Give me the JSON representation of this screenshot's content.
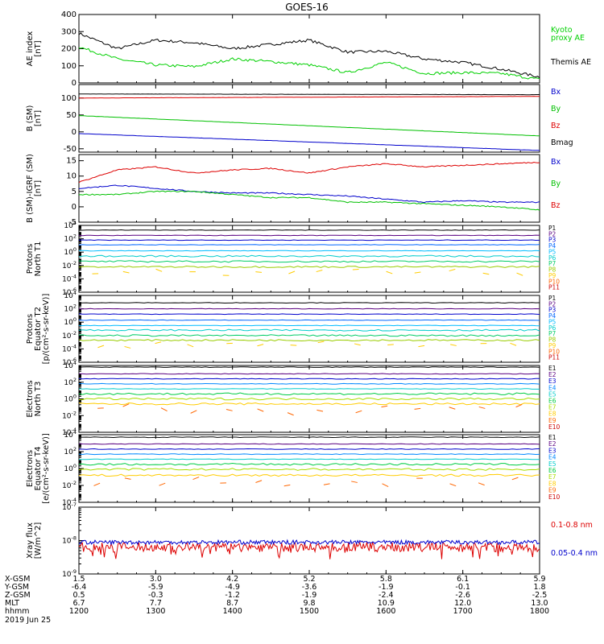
{
  "title": "GOES-16",
  "footer": {
    "row_labels": [
      "X-GSM",
      "Y-GSM",
      "Z-GSM",
      "MLT",
      "hhmm"
    ],
    "date": "2019 Jun 25",
    "columns": [
      [
        "1.5",
        "-6.4",
        "0.5",
        "6.7",
        "1200"
      ],
      [
        "3.0",
        "-5.9",
        "-0.3",
        "7.7",
        "1300"
      ],
      [
        "4.2",
        "-4.9",
        "-1.2",
        "8.7",
        "1400"
      ],
      [
        "5.2",
        "-3.6",
        "-1.9",
        "9.8",
        "1500"
      ],
      [
        "5.8",
        "-1.9",
        "-2.4",
        "10.9",
        "1600"
      ],
      [
        "6.1",
        "-0.1",
        "-2.6",
        "12.0",
        "1700"
      ],
      [
        "5.9",
        "1.8",
        "-2.5",
        "13.0",
        "1800"
      ]
    ]
  },
  "chart_data": [
    {
      "id": "ae",
      "type": "line",
      "ylabel": [
        "AE index",
        "[nT]"
      ],
      "ylim": [
        0,
        400
      ],
      "yticks": [
        0,
        100,
        200,
        300,
        400
      ],
      "ytick_labels": [
        "0",
        "100",
        "200",
        "300",
        "400"
      ],
      "x_hours": [
        12,
        12.5,
        13,
        13.5,
        14,
        14.5,
        15,
        15.5,
        16,
        16.5,
        17,
        17.5,
        18
      ],
      "legend": [
        {
          "text": "Kyoto",
          "color": "#00d000"
        },
        {
          "text": "proxy AE",
          "color": "#00d000"
        },
        {
          "text": "Themis AE",
          "color": "#000000"
        }
      ],
      "series": [
        {
          "name": "Themis AE",
          "color": "#000000",
          "values": [
            290,
            200,
            250,
            235,
            200,
            225,
            250,
            180,
            185,
            140,
            120,
            80,
            35
          ]
        },
        {
          "name": "Kyoto proxy AE",
          "color": "#00d000",
          "values": [
            210,
            140,
            105,
            95,
            140,
            125,
            105,
            60,
            120,
            55,
            60,
            55,
            20
          ]
        }
      ]
    },
    {
      "id": "bsm",
      "type": "line",
      "ylabel": [
        "B (SM)",
        "[nT]"
      ],
      "ylim": [
        -60,
        140
      ],
      "yticks": [
        -50,
        0,
        50,
        100
      ],
      "ytick_labels": [
        "-50",
        "0",
        "50",
        "100"
      ],
      "x_hours": [
        12,
        18
      ],
      "legend": [
        {
          "text": "Bx",
          "color": "#0000cc"
        },
        {
          "text": "By",
          "color": "#00c000"
        },
        {
          "text": "Bz",
          "color": "#dd0000"
        },
        {
          "text": "Bmag",
          "color": "#000000"
        }
      ],
      "series": [
        {
          "name": "Bx",
          "color": "#0000cc",
          "values": [
            -5,
            -55
          ]
        },
        {
          "name": "By",
          "color": "#00c000",
          "values": [
            48,
            -12
          ]
        },
        {
          "name": "Bz",
          "color": "#dd0000",
          "values": [
            100,
            105
          ]
        },
        {
          "name": "Bmag",
          "color": "#000000",
          "values": [
            112,
            110
          ]
        }
      ]
    },
    {
      "id": "bigrf",
      "type": "line",
      "ylabel": [
        "B (SM)-IGRF (SM)",
        "[nT]"
      ],
      "ylim": [
        -5,
        17
      ],
      "yticks": [
        -5,
        0,
        5,
        10,
        15
      ],
      "ytick_labels": [
        "-5",
        "0",
        "5",
        "10",
        "15"
      ],
      "x_hours": [
        12,
        12.5,
        13,
        13.5,
        14,
        14.5,
        15,
        15.5,
        16,
        16.5,
        17,
        17.5,
        18
      ],
      "legend": [
        {
          "text": "Bx",
          "color": "#0000cc"
        },
        {
          "text": "By",
          "color": "#00c000"
        },
        {
          "text": "Bz",
          "color": "#dd0000"
        }
      ],
      "series": [
        {
          "name": "Bx",
          "color": "#0000cc",
          "values": [
            6,
            7,
            6,
            5,
            4.5,
            4.5,
            4,
            3.5,
            2.5,
            1.5,
            2,
            1.5,
            1.5
          ]
        },
        {
          "name": "By",
          "color": "#00c000",
          "values": [
            4,
            4,
            5,
            5,
            4,
            3,
            3,
            1.5,
            1.5,
            1,
            0.5,
            0,
            -1
          ]
        },
        {
          "name": "Bz",
          "color": "#dd0000",
          "values": [
            8,
            12,
            13,
            11,
            12,
            12.5,
            11,
            13,
            14,
            13,
            13.5,
            14,
            14.5
          ]
        }
      ]
    },
    {
      "id": "protons-t1",
      "type": "line",
      "ylabel": [
        "Protons",
        "North T1"
      ],
      "yscale": "log",
      "ylim_exp": [
        -6,
        4
      ],
      "ytick_exps": [
        -6,
        -4,
        -2,
        0,
        2,
        4
      ],
      "legend_labels": [
        "P1",
        "P2",
        "P3",
        "P4",
        "P5",
        "P6",
        "P7",
        "P8",
        "P9",
        "P10",
        "P11"
      ],
      "legend_colors": [
        "#000000",
        "#5a0080",
        "#0000cc",
        "#0066ff",
        "#00bbff",
        "#00cccc",
        "#00cc66",
        "#99cc00",
        "#ffcc00",
        "#ff6600",
        "#cc0000"
      ],
      "levels_log10": [
        3.3,
        2.5,
        1.8,
        1.1,
        0.2,
        -0.6,
        -1.4,
        -2.2,
        -3.0,
        -4.0,
        -5.0
      ],
      "visible_lines": 8
    },
    {
      "id": "protons-t2",
      "type": "line",
      "ylabel": [
        "Protons",
        "Equator T2",
        "[p/(cm²-s-sr-keV)]"
      ],
      "yscale": "log",
      "ylim_exp": [
        -6,
        4
      ],
      "ytick_exps": [
        -6,
        -4,
        -2,
        0,
        2,
        4
      ],
      "legend_labels": [
        "P1",
        "P2",
        "P3",
        "P4",
        "P5",
        "P6",
        "P7",
        "P8",
        "P9",
        "P10",
        "P11"
      ],
      "legend_colors": [
        "#000000",
        "#5a0080",
        "#0000cc",
        "#0066ff",
        "#00bbff",
        "#00cccc",
        "#00cc66",
        "#99cc00",
        "#ffcc00",
        "#ff6600",
        "#cc0000"
      ],
      "levels_log10": [
        2.9,
        2.0,
        1.2,
        0.3,
        -0.5,
        -1.2,
        -2.0,
        -2.7,
        -3.5,
        -4.2,
        -5.0
      ],
      "visible_lines": 8
    },
    {
      "id": "electrons-t3",
      "type": "line",
      "ylabel": [
        "Electrons",
        "North T3"
      ],
      "yscale": "log",
      "ylim_exp": [
        -4,
        4
      ],
      "ytick_exps": [
        -4,
        -2,
        0,
        2,
        4
      ],
      "legend_labels": [
        "E1",
        "E2",
        "E3",
        "E4",
        "E5",
        "E6",
        "E7",
        "E8",
        "E9",
        "E10"
      ],
      "legend_colors": [
        "#000000",
        "#5a0080",
        "#0000cc",
        "#0088ff",
        "#00cccc",
        "#00cc44",
        "#aadd00",
        "#ffcc00",
        "#ff6600",
        "#cc0000"
      ],
      "levels_log10": [
        3.8,
        3.0,
        2.4,
        1.8,
        1.2,
        0.6,
        0.0,
        -0.6,
        -1.4,
        -2.4
      ],
      "visible_lines": 8
    },
    {
      "id": "electrons-t4",
      "type": "line",
      "ylabel": [
        "Electrons",
        "Equator T4",
        "[e/(cm²-s-sr-keV)]"
      ],
      "yscale": "log",
      "ylim_exp": [
        -4,
        4
      ],
      "ytick_exps": [
        -4,
        -2,
        0,
        2,
        4
      ],
      "legend_labels": [
        "E1",
        "E2",
        "E3",
        "E4",
        "E5",
        "E6",
        "E7",
        "E8",
        "E9",
        "E10"
      ],
      "legend_colors": [
        "#000000",
        "#5a0080",
        "#0000cc",
        "#0088ff",
        "#00cccc",
        "#00cc44",
        "#aadd00",
        "#ffcc00",
        "#ff6600",
        "#cc0000"
      ],
      "levels_log10": [
        3.7,
        2.9,
        2.3,
        1.7,
        1.1,
        0.5,
        -0.1,
        -0.8,
        -1.6,
        -2.5
      ],
      "visible_lines": 8
    },
    {
      "id": "xray",
      "type": "line",
      "ylabel": [
        "Xray flux",
        "[W/m^2]"
      ],
      "yscale": "log",
      "ylim_exp": [
        -9,
        -7
      ],
      "ytick_exps": [
        -9,
        -8,
        -7
      ],
      "legend": [
        {
          "text": "0.1-0.8 nm",
          "color": "#dd0000"
        },
        {
          "text": "0.05-0.4 nm",
          "color": "#0000cc"
        }
      ],
      "series": [
        {
          "name": "0.1-0.8 nm",
          "color": "#dd0000",
          "mean_log10": -8.2
        },
        {
          "name": "0.05-0.4 nm",
          "color": "#0000cc",
          "mean_log10": -8.05
        }
      ]
    }
  ]
}
